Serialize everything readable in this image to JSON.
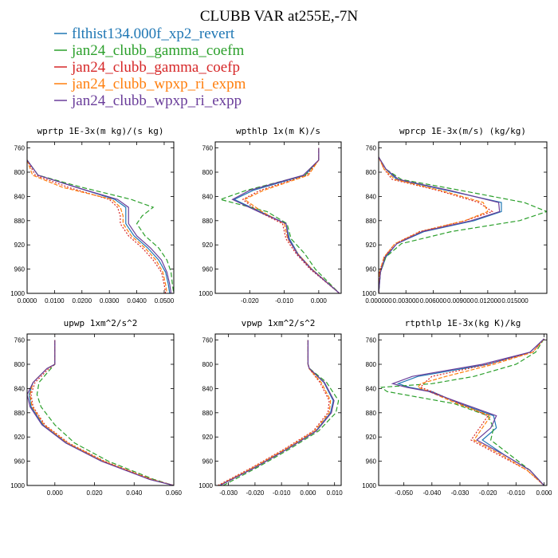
{
  "figure": {
    "title": "CLUBB VAR at255E,-7N"
  },
  "legend": [
    {
      "label": "flthist134.000f_xp2_revert",
      "color": "#1f77b4",
      "dash": ""
    },
    {
      "label": "jan24_clubb_gamma_coefm",
      "color": "#2ca02c",
      "dash": "6,3"
    },
    {
      "label": "jan24_clubb_gamma_coefp",
      "color": "#d62728",
      "dash": "2,2"
    },
    {
      "label": "jan24_clubb_wpxp_ri_expm",
      "color": "#ff7f0e",
      "dash": "5,2"
    },
    {
      "label": "jan24_clubb_wpxp_ri_expp",
      "color": "#6a3d9a",
      "dash": ""
    }
  ],
  "chart_data": [
    {
      "type": "line",
      "title": "wprtp  1E-3x(m kg)/(s kg)",
      "xlim": [
        0,
        0.0535
      ],
      "ylim": [
        750,
        1000
      ],
      "y_reversed": true,
      "xticks": [
        0,
        0.01,
        0.02,
        0.03,
        0.04,
        0.05
      ],
      "xtick_labels": [
        "0.0000",
        "0.0100",
        "0.0200",
        "0.0300",
        "0.0400",
        "0.0500"
      ],
      "yticks": [
        760,
        800,
        840,
        880,
        920,
        960,
        1000
      ],
      "ytick_labels": [
        "760",
        "800",
        "840",
        "880",
        "920",
        "960",
        "1000"
      ],
      "y": [
        780,
        805,
        825,
        845,
        858,
        872,
        885,
        905,
        925,
        945,
        965,
        985,
        1000
      ],
      "series": [
        {
          "values": [
            0.0,
            0.004,
            0.018,
            0.032,
            0.036,
            0.036,
            0.036,
            0.039,
            0.044,
            0.048,
            0.0505,
            0.0515,
            0.052
          ]
        },
        {
          "values": [
            0.0,
            0.004,
            0.02,
            0.038,
            0.046,
            0.042,
            0.04,
            0.043,
            0.048,
            0.051,
            0.0525,
            0.053,
            0.0535
          ]
        },
        {
          "values": [
            0.0,
            0.003,
            0.015,
            0.03,
            0.033,
            0.034,
            0.034,
            0.037,
            0.042,
            0.046,
            0.049,
            0.05,
            0.0505
          ]
        },
        {
          "values": [
            0.0,
            0.002,
            0.013,
            0.031,
            0.034,
            0.035,
            0.035,
            0.038,
            0.043,
            0.047,
            0.0495,
            0.0505,
            0.051
          ]
        },
        {
          "values": [
            0.0,
            0.004,
            0.018,
            0.033,
            0.037,
            0.037,
            0.037,
            0.04,
            0.045,
            0.049,
            0.051,
            0.052,
            0.0525
          ]
        }
      ]
    },
    {
      "type": "line",
      "title": "wpthlp  1x(m K)/s",
      "xlim": [
        -0.03,
        0.0065
      ],
      "ylim": [
        750,
        1000
      ],
      "y_reversed": true,
      "xticks": [
        -0.02,
        -0.01,
        0.0
      ],
      "xtick_labels": [
        "-0.020",
        "-0.010",
        "0.000"
      ],
      "yticks": [
        760,
        800,
        840,
        880,
        920,
        960,
        1000
      ],
      "ytick_labels": [
        "760",
        "800",
        "840",
        "880",
        "920",
        "960",
        "1000"
      ],
      "y": [
        760,
        780,
        805,
        830,
        845,
        865,
        885,
        910,
        935,
        960,
        1000
      ],
      "series": [
        {
          "values": [
            0.0,
            0.0,
            -0.004,
            -0.019,
            -0.0245,
            -0.017,
            -0.0095,
            -0.0085,
            -0.006,
            -0.002,
            0.006
          ]
        },
        {
          "values": [
            0.0,
            0.0,
            -0.004,
            -0.021,
            -0.0285,
            -0.015,
            -0.0092,
            -0.008,
            -0.004,
            -0.001,
            0.006
          ]
        },
        {
          "values": [
            0.0,
            0.0,
            -0.0035,
            -0.017,
            -0.022,
            -0.0175,
            -0.0105,
            -0.0095,
            -0.0065,
            -0.0025,
            0.006
          ]
        },
        {
          "values": [
            0.0,
            0.0,
            -0.003,
            -0.016,
            -0.0215,
            -0.0165,
            -0.01,
            -0.009,
            -0.006,
            -0.002,
            0.006
          ]
        },
        {
          "values": [
            0.0,
            0.0,
            -0.0045,
            -0.02,
            -0.025,
            -0.0175,
            -0.0095,
            -0.0088,
            -0.0062,
            -0.0022,
            0.006
          ]
        }
      ]
    },
    {
      "type": "line",
      "title": "wprcp  1E-3x(m/s) (kg/kg)",
      "xlim": [
        0,
        0.0185
      ],
      "ylim": [
        750,
        1000
      ],
      "y_reversed": true,
      "xticks": [
        0,
        0.003,
        0.006,
        0.009,
        0.012,
        0.015
      ],
      "xtick_labels": [
        "0.000000",
        "0.003000",
        "0.006000",
        "0.009000",
        "0.012000",
        "0.015000"
      ],
      "yticks": [
        760,
        800,
        840,
        880,
        920,
        960,
        1000
      ],
      "ytick_labels": [
        "760",
        "800",
        "840",
        "880",
        "920",
        "960",
        "1000"
      ],
      "y": [
        775,
        795,
        812,
        830,
        850,
        865,
        880,
        898,
        918,
        940,
        965,
        1000
      ],
      "series": [
        {
          "values": [
            0.0,
            0.0008,
            0.002,
            0.0075,
            0.0135,
            0.0135,
            0.0105,
            0.005,
            0.002,
            0.0008,
            0.0002,
            0.0
          ]
        },
        {
          "values": [
            0.0,
            0.0008,
            0.0025,
            0.009,
            0.016,
            0.0185,
            0.0155,
            0.008,
            0.0025,
            0.0008,
            0.0002,
            0.0
          ]
        },
        {
          "values": [
            0.0,
            0.0006,
            0.0015,
            0.0065,
            0.011,
            0.0125,
            0.0095,
            0.0045,
            0.0018,
            0.0006,
            0.0001,
            0.0
          ]
        },
        {
          "values": [
            0.0,
            0.0006,
            0.0018,
            0.0068,
            0.0115,
            0.012,
            0.0095,
            0.0046,
            0.0018,
            0.0006,
            0.0001,
            0.0
          ]
        },
        {
          "values": [
            0.0,
            0.0008,
            0.0022,
            0.0078,
            0.0132,
            0.0133,
            0.0102,
            0.0048,
            0.002,
            0.0007,
            0.0002,
            0.0
          ]
        }
      ]
    },
    {
      "type": "line",
      "title": "upwp  1xm^2/s^2",
      "xlim": [
        -0.014,
        0.06
      ],
      "ylim": [
        750,
        1000
      ],
      "y_reversed": true,
      "xticks": [
        0.0,
        0.02,
        0.04,
        0.06
      ],
      "xtick_labels": [
        "0.000",
        "0.020",
        "0.040",
        "0.060"
      ],
      "yticks": [
        760,
        800,
        840,
        880,
        920,
        960,
        1000
      ],
      "ytick_labels": [
        "760",
        "800",
        "840",
        "880",
        "920",
        "960",
        "1000"
      ],
      "y": [
        760,
        800,
        807,
        830,
        850,
        870,
        900,
        930,
        960,
        990,
        1000
      ],
      "series": [
        {
          "values": [
            0.0,
            0.0,
            -0.004,
            -0.011,
            -0.013,
            -0.012,
            -0.006,
            0.006,
            0.024,
            0.048,
            0.06
          ]
        },
        {
          "values": [
            0.0,
            0.0,
            -0.002,
            -0.008,
            -0.009,
            -0.007,
            0.0,
            0.01,
            0.027,
            0.05,
            0.06
          ]
        },
        {
          "values": [
            0.0,
            0.0,
            -0.003,
            -0.01,
            -0.012,
            -0.011,
            -0.005,
            0.007,
            0.025,
            0.049,
            0.06
          ]
        },
        {
          "values": [
            0.0,
            0.0,
            -0.004,
            -0.011,
            -0.0125,
            -0.0115,
            -0.0055,
            0.0065,
            0.0245,
            0.0485,
            0.06
          ]
        },
        {
          "values": [
            0.0,
            0.0,
            -0.004,
            -0.011,
            -0.014,
            -0.0125,
            -0.0065,
            0.0055,
            0.0235,
            0.0478,
            0.06
          ]
        }
      ]
    },
    {
      "type": "line",
      "title": "vpwp  1xm^2/s^2",
      "xlim": [
        -0.035,
        0.0125
      ],
      "ylim": [
        750,
        1000
      ],
      "y_reversed": true,
      "xticks": [
        -0.03,
        -0.02,
        -0.01,
        0.0,
        0.01
      ],
      "xtick_labels": [
        "-0.030",
        "-0.020",
        "-0.010",
        "0.000",
        "0.010"
      ],
      "yticks": [
        760,
        800,
        840,
        880,
        920,
        960,
        1000
      ],
      "ytick_labels": [
        "760",
        "800",
        "840",
        "880",
        "920",
        "960",
        "1000"
      ],
      "y": [
        760,
        800,
        807,
        830,
        860,
        880,
        910,
        940,
        970,
        1000
      ],
      "series": [
        {
          "values": [
            0.0,
            0.0,
            0.0005,
            0.006,
            0.0095,
            0.0085,
            0.003,
            -0.008,
            -0.02,
            -0.0335
          ]
        },
        {
          "values": [
            0.0,
            0.0,
            0.0006,
            0.007,
            0.0115,
            0.0105,
            0.004,
            -0.007,
            -0.019,
            -0.032
          ]
        },
        {
          "values": [
            0.0,
            0.0,
            0.0004,
            0.0045,
            0.008,
            0.0075,
            0.002,
            -0.009,
            -0.021,
            -0.034
          ]
        },
        {
          "values": [
            0.0,
            0.0,
            0.0004,
            0.005,
            0.0085,
            0.008,
            0.0025,
            -0.0085,
            -0.0205,
            -0.0335
          ]
        },
        {
          "values": [
            0.0,
            0.0,
            0.0005,
            0.0062,
            0.0098,
            0.0088,
            0.0032,
            -0.0078,
            -0.0198,
            -0.0332
          ]
        }
      ]
    },
    {
      "type": "line",
      "title": "rtpthlp  1E-3x(kg K)/kg",
      "xlim": [
        -0.059,
        0.001
      ],
      "ylim": [
        750,
        1000
      ],
      "y_reversed": true,
      "xticks": [
        -0.05,
        -0.04,
        -0.03,
        -0.02,
        -0.01,
        0.0
      ],
      "xtick_labels": [
        "-0.050",
        "-0.040",
        "-0.030",
        "-0.020",
        "-0.010",
        "0.000"
      ],
      "yticks": [
        760,
        800,
        840,
        880,
        920,
        960,
        1000
      ],
      "ytick_labels": [
        "760",
        "800",
        "840",
        "880",
        "920",
        "960",
        "1000"
      ],
      "y": [
        758,
        780,
        800,
        820,
        832,
        838,
        845,
        865,
        885,
        905,
        925,
        950,
        975,
        1000
      ],
      "series": [
        {
          "values": [
            0.0,
            -0.005,
            -0.02,
            -0.045,
            -0.052,
            -0.048,
            -0.04,
            -0.03,
            -0.018,
            -0.017,
            -0.022,
            -0.014,
            -0.005,
            0.0
          ]
        },
        {
          "values": [
            0.0,
            -0.003,
            -0.01,
            -0.025,
            -0.04,
            -0.058,
            -0.056,
            -0.032,
            -0.02,
            -0.018,
            -0.019,
            -0.012,
            -0.005,
            0.0
          ]
        },
        {
          "values": [
            0.0,
            -0.004,
            -0.02,
            -0.04,
            -0.043,
            -0.044,
            -0.04,
            -0.03,
            -0.02,
            -0.023,
            -0.026,
            -0.016,
            -0.006,
            0.0
          ]
        },
        {
          "values": [
            0.0,
            -0.004,
            -0.018,
            -0.035,
            -0.044,
            -0.045,
            -0.041,
            -0.031,
            -0.019,
            -0.022,
            -0.025,
            -0.015,
            -0.006,
            0.0
          ]
        },
        {
          "values": [
            0.0,
            -0.005,
            -0.022,
            -0.047,
            -0.054,
            -0.049,
            -0.041,
            -0.029,
            -0.017,
            -0.019,
            -0.024,
            -0.014,
            -0.005,
            0.0
          ]
        }
      ]
    }
  ]
}
